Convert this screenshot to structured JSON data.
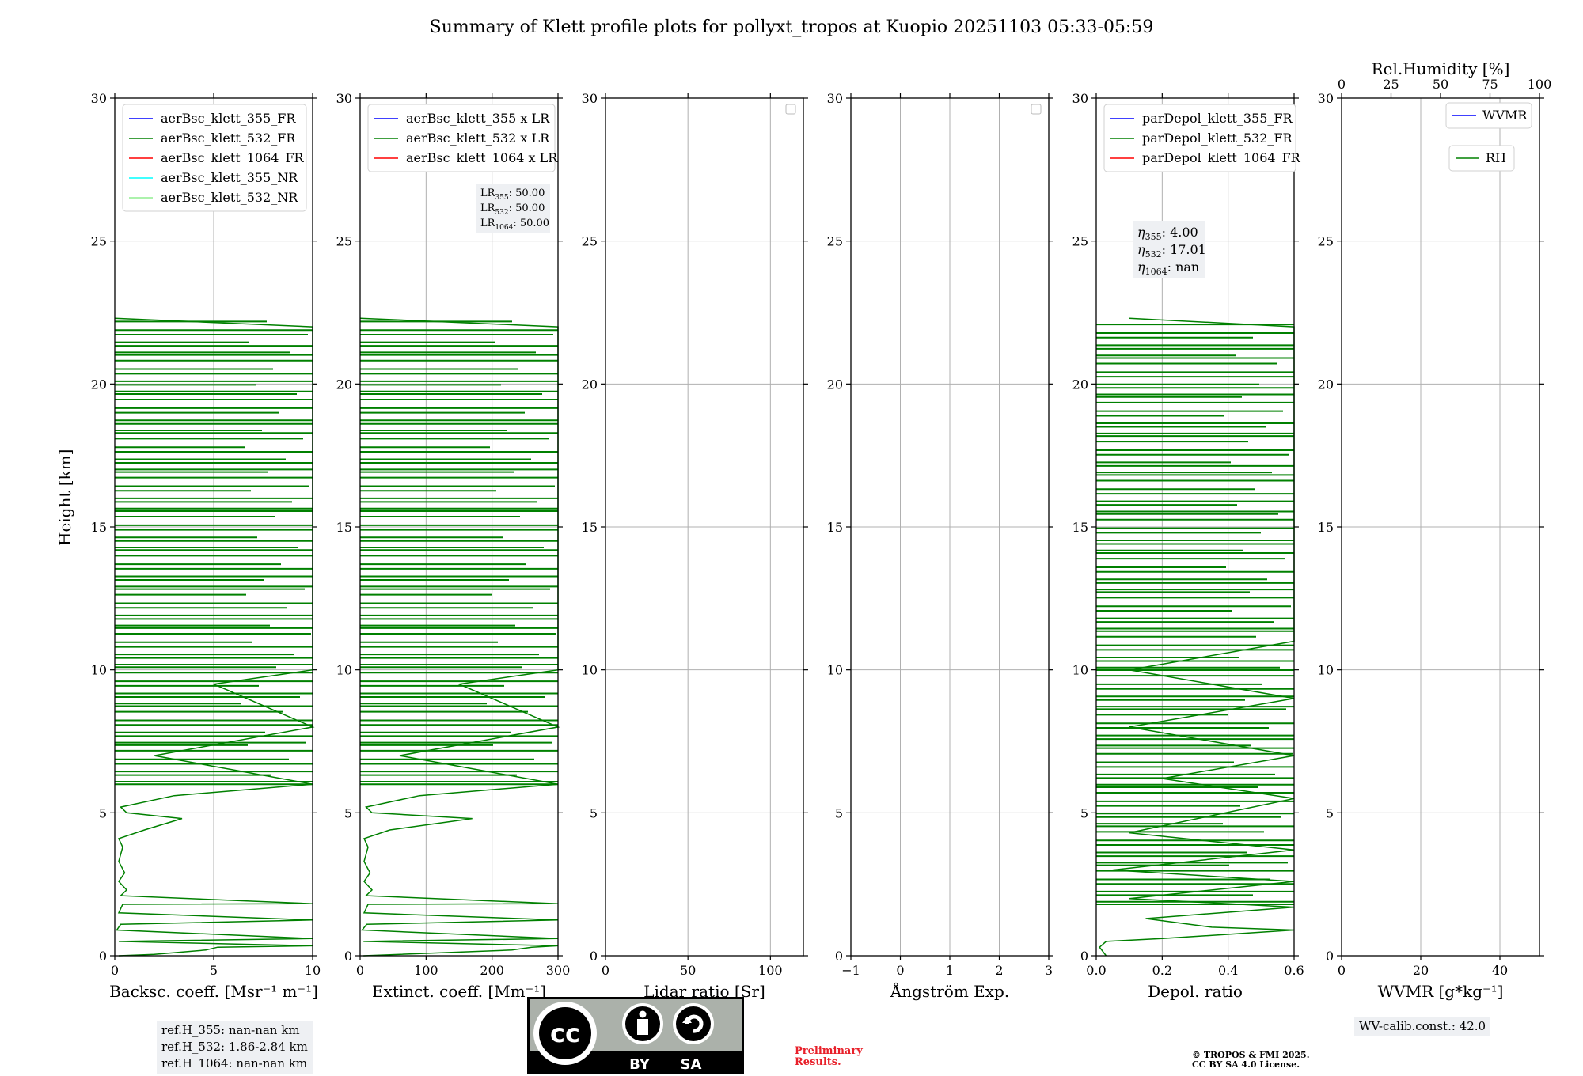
{
  "title": "Summary of Klett profile plots for pollyxt_tropos at Kuopio 20251103 05:33-05:59",
  "y_axis_label": "Height [km]",
  "y_ticks": [
    "0",
    "5",
    "10",
    "15",
    "20",
    "25",
    "30"
  ],
  "rh_axis": {
    "label": "Rel.Humidity [%]",
    "ticks": [
      "0",
      "25",
      "50",
      "75",
      "100"
    ],
    "range": [
      0,
      100
    ]
  },
  "colors": {
    "line355": "#0000ff",
    "line532": "#008000",
    "line1064": "#ff0000",
    "line355NR": "#00ffff",
    "line532NR": "#90ee90",
    "grid": "#b0b0b0"
  },
  "chart_data": [
    {
      "type": "line",
      "panel": "backscatter",
      "xlabel": "Backsc. coeff. [Msr⁻¹ m⁻¹]",
      "xlim": [
        0,
        10
      ],
      "x_ticks": [
        "0",
        "5",
        "10"
      ],
      "ylim": [
        0,
        30
      ],
      "legend": [
        "aerBsc_klett_355_FR",
        "aerBsc_klett_532_FR",
        "aerBsc_klett_1064_FR",
        "aerBsc_klett_355_NR",
        "aerBsc_klett_532_NR"
      ],
      "series": [
        {
          "name": "aerBsc_klett_532_FR",
          "values": [
            [
              0.2,
              0.0
            ],
            [
              2.0,
              0.05
            ],
            [
              4.6,
              0.2
            ],
            [
              5.2,
              0.3
            ],
            [
              10,
              0.35
            ],
            [
              0.2,
              0.5
            ],
            [
              10,
              0.6
            ],
            [
              0.1,
              0.9
            ],
            [
              0.3,
              1.1
            ],
            [
              10,
              1.25
            ],
            [
              0.2,
              1.5
            ],
            [
              0.4,
              1.8
            ],
            [
              10,
              1.82
            ],
            [
              0.3,
              2.1
            ],
            [
              0.6,
              2.3
            ],
            [
              0.2,
              2.6
            ],
            [
              0.5,
              2.9
            ],
            [
              0.2,
              3.3
            ],
            [
              0.4,
              3.8
            ],
            [
              0.2,
              4.1
            ],
            [
              1.5,
              4.4
            ],
            [
              3.4,
              4.8
            ],
            [
              0.6,
              5.0
            ],
            [
              0.3,
              5.2
            ],
            [
              3.0,
              5.6
            ],
            [
              10,
              6.0
            ],
            [
              6.0,
              6.5
            ],
            [
              2.0,
              7.0
            ],
            [
              10,
              8.0
            ],
            [
              5.0,
              9.5
            ],
            [
              10,
              10.0
            ],
            [
              10,
              11.0
            ],
            [
              10,
              12.5
            ],
            [
              10,
              13.5
            ],
            [
              10,
              15.0
            ],
            [
              10,
              16.0
            ],
            [
              10,
              17.0
            ],
            [
              10,
              18.0
            ],
            [
              10,
              19.0
            ],
            [
              10,
              20.0
            ],
            [
              10,
              21.0
            ],
            [
              10,
              22.0
            ],
            [
              0.0,
              22.3
            ]
          ]
        }
      ]
    },
    {
      "type": "line",
      "panel": "extinction",
      "xlabel": "Extinct. coeff. [Mm⁻¹]",
      "xlim": [
        0,
        300
      ],
      "x_ticks": [
        "0",
        "100",
        "200",
        "300"
      ],
      "ylim": [
        0,
        30
      ],
      "legend": [
        "aerBsc_klett_355 x LR",
        "aerBsc_klett_532 x LR",
        "aerBsc_klett_1064 x LR"
      ],
      "series": [
        {
          "name": "aerBsc_klett_532 x LR",
          "values": [
            [
              5,
              0.0
            ],
            [
              230,
              0.2
            ],
            [
              260,
              0.3
            ],
            [
              300,
              0.35
            ],
            [
              5,
              0.5
            ],
            [
              300,
              0.6
            ],
            [
              3,
              0.9
            ],
            [
              10,
              1.1
            ],
            [
              300,
              1.25
            ],
            [
              6,
              1.5
            ],
            [
              12,
              1.8
            ],
            [
              300,
              1.82
            ],
            [
              9,
              2.1
            ],
            [
              18,
              2.3
            ],
            [
              6,
              2.6
            ],
            [
              15,
              2.9
            ],
            [
              6,
              3.3
            ],
            [
              12,
              3.8
            ],
            [
              6,
              4.1
            ],
            [
              45,
              4.4
            ],
            [
              170,
              4.8
            ],
            [
              18,
              5.0
            ],
            [
              9,
              5.2
            ],
            [
              90,
              5.6
            ],
            [
              300,
              6.0
            ],
            [
              180,
              6.5
            ],
            [
              60,
              7.0
            ],
            [
              300,
              8.0
            ],
            [
              150,
              9.5
            ],
            [
              300,
              10.0
            ],
            [
              300,
              11.0
            ],
            [
              300,
              12.5
            ],
            [
              300,
              13.5
            ],
            [
              300,
              15.0
            ],
            [
              300,
              16.0
            ],
            [
              300,
              17.0
            ],
            [
              300,
              18.0
            ],
            [
              300,
              19.0
            ],
            [
              300,
              20.0
            ],
            [
              300,
              21.0
            ],
            [
              300,
              22.0
            ],
            [
              0,
              22.3
            ]
          ]
        }
      ],
      "annotation": [
        {
          "sub": "355",
          "value": "50.00"
        },
        {
          "sub": "532",
          "value": "50.00"
        },
        {
          "sub": "1064",
          "value": "50.00"
        }
      ]
    },
    {
      "type": "line",
      "panel": "lidar_ratio",
      "xlabel": "Lidar ratio [Sr]",
      "xlim": [
        0,
        120
      ],
      "x_ticks": [
        "0",
        "50",
        "100"
      ],
      "ylim": [
        0,
        30
      ],
      "series": []
    },
    {
      "type": "line",
      "panel": "angstrom",
      "xlabel": "Ångström Exp.",
      "xlim": [
        -1,
        3
      ],
      "x_ticks": [
        "−1",
        "0",
        "1",
        "2",
        "3"
      ],
      "ylim": [
        0,
        30
      ],
      "series": []
    },
    {
      "type": "line",
      "panel": "depol",
      "xlabel": "Depol. ratio",
      "xlim": [
        0,
        0.6
      ],
      "x_ticks": [
        "0.0",
        "0.2",
        "0.4",
        "0.6"
      ],
      "ylim": [
        0,
        30
      ],
      "legend": [
        "parDepol_klett_355_FR",
        "parDepol_klett_532_FR",
        "parDepol_klett_1064_FR"
      ],
      "series": [
        {
          "name": "parDepol_klett_532_FR",
          "values": [
            [
              0.03,
              0.0
            ],
            [
              0.01,
              0.3
            ],
            [
              0.03,
              0.5
            ],
            [
              0.2,
              0.6
            ],
            [
              0.6,
              0.9
            ],
            [
              0.35,
              1.0
            ],
            [
              0.15,
              1.3
            ],
            [
              0.6,
              1.7
            ],
            [
              0.1,
              2.0
            ],
            [
              0.6,
              2.6
            ],
            [
              0.05,
              3.0
            ],
            [
              0.6,
              3.7
            ],
            [
              0.1,
              4.3
            ],
            [
              0.6,
              5.5
            ],
            [
              0.2,
              6.2
            ],
            [
              0.6,
              7.0
            ],
            [
              0.1,
              8.0
            ],
            [
              0.6,
              9.0
            ],
            [
              0.1,
              10.0
            ],
            [
              0.6,
              11.0
            ],
            [
              0.6,
              13.0
            ],
            [
              0.6,
              15.0
            ],
            [
              0.6,
              17.0
            ],
            [
              0.6,
              19.0
            ],
            [
              0.6,
              21.0
            ],
            [
              0.6,
              22.0
            ],
            [
              0.1,
              22.3
            ]
          ]
        }
      ],
      "annotation": [
        {
          "sub": "355",
          "value": "4.00"
        },
        {
          "sub": "532",
          "value": "17.01"
        },
        {
          "sub": "1064",
          "value": "nan"
        }
      ]
    },
    {
      "type": "line",
      "panel": "wvmr",
      "xlabel": "WVMR [g*kg⁻¹]",
      "xlim": [
        0,
        50
      ],
      "x_ticks": [
        "0",
        "20",
        "40"
      ],
      "ylim": [
        0,
        30
      ],
      "legend": [
        "WVMR",
        "RH"
      ],
      "series": []
    }
  ],
  "ref_heights": [
    "ref.H_355: nan-nan km",
    "ref.H_532: 1.86-2.84 km",
    "ref.H_1064: nan-nan km"
  ],
  "wv_calib": "WV-calib.const.: 42.0",
  "cc_license": {
    "cc": "cc",
    "by": "BY",
    "sa": "SA"
  },
  "preliminary": [
    "Preliminary",
    "Results."
  ],
  "copyright": [
    "© TROPOS & FMI 2025.",
    "CC BY SA 4.0 License."
  ]
}
